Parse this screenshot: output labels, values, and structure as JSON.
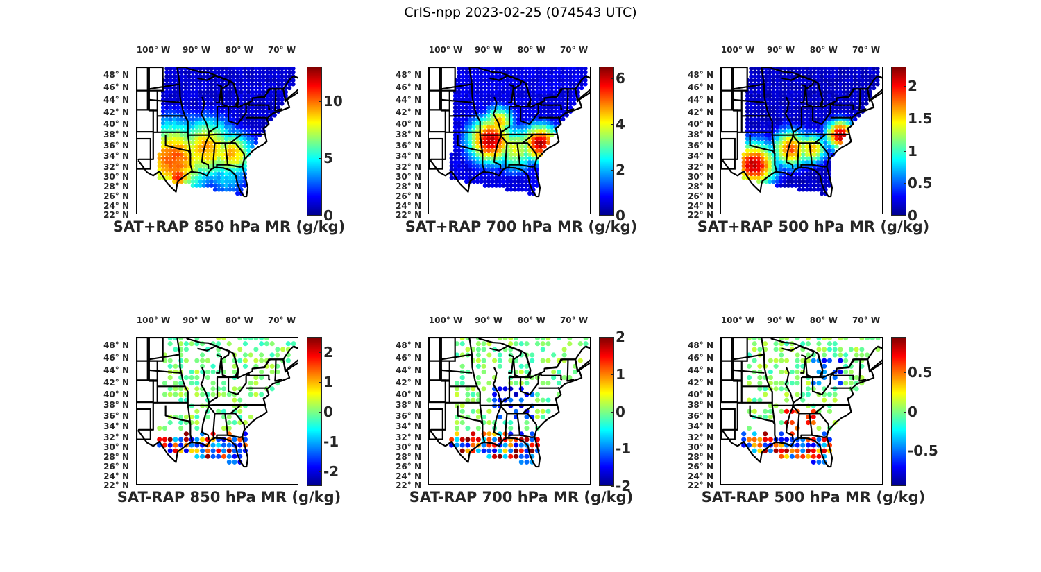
{
  "figure": {
    "title": "CrIS-npp 2023-02-25 (074543 UTC)"
  },
  "chart_data": [
    {
      "type": "heatmap",
      "title": "SAT+RAP 850 hPa MR (g/kg)",
      "xlabel": "",
      "ylabel": "",
      "x_ticks": [
        "100° W",
        "90° W",
        "80° W",
        "70° W"
      ],
      "y_ticks": [
        "48° N",
        "46° N",
        "44° N",
        "42° N",
        "40° N",
        "38° N",
        "36° N",
        "34° N",
        "32° N",
        "30° N",
        "28° N",
        "26° N",
        "24° N",
        "22° N"
      ],
      "lon_range": [
        -107,
        -68
      ],
      "lat_range": [
        22,
        49
      ],
      "colormap": "jet",
      "colorbar": {
        "range": [
          0,
          13
        ],
        "ticks": [
          0,
          5,
          10
        ],
        "tick_labels": [
          "0",
          "5",
          "10"
        ]
      },
      "summary": "Low values (~0-2) across the north; high values (~8-11) across southern plains, Texas, Tennessee valley and Gulf states."
    },
    {
      "type": "heatmap",
      "title": "SAT+RAP 700 hPa MR (g/kg)",
      "x_ticks": [
        "100° W",
        "90° W",
        "80° W",
        "70° W"
      ],
      "y_ticks": [
        "48° N",
        "46° N",
        "44° N",
        "42° N",
        "40° N",
        "38° N",
        "36° N",
        "34° N",
        "32° N",
        "30° N",
        "28° N",
        "26° N",
        "24° N",
        "22° N"
      ],
      "lon_range": [
        -107,
        -68
      ],
      "lat_range": [
        22,
        49
      ],
      "colormap": "jet",
      "colorbar": {
        "range": [
          0,
          6.5
        ],
        "ticks": [
          0,
          2,
          4,
          6
        ],
        "tick_labels": [
          "0",
          "2",
          "4",
          "6"
        ]
      },
      "summary": "Band of high values (~5-6.5) along 34-37 N from Oklahoma to the Carolinas; low elsewhere."
    },
    {
      "type": "heatmap",
      "title": "SAT+RAP 500 hPa MR (g/kg)",
      "x_ticks": [
        "100° W",
        "90° W",
        "80° W",
        "70° W"
      ],
      "y_ticks": [
        "48° N",
        "46° N",
        "44° N",
        "42° N",
        "40° N",
        "38° N",
        "36° N",
        "34° N",
        "32° N",
        "30° N",
        "28° N",
        "26° N",
        "24° N",
        "22° N"
      ],
      "lon_range": [
        -107,
        -68
      ],
      "lat_range": [
        22,
        49
      ],
      "colormap": "jet",
      "colorbar": {
        "range": [
          0,
          2.3
        ],
        "ticks": [
          0,
          0.5,
          1,
          1.5,
          2
        ],
        "tick_labels": [
          "0",
          "0.5",
          "1",
          "1.5",
          "2"
        ]
      },
      "summary": "High values (~2+) in a SW-NE band from south Texas to Virginia/North Carolina; low elsewhere."
    },
    {
      "type": "scatter",
      "title": "SAT-RAP 850 hPa MR (g/kg)",
      "x_ticks": [
        "100° W",
        "90° W",
        "80° W",
        "70° W"
      ],
      "y_ticks": [
        "48° N",
        "46° N",
        "44° N",
        "42° N",
        "40° N",
        "38° N",
        "36° N",
        "34° N",
        "32° N",
        "30° N",
        "28° N",
        "26° N",
        "24° N",
        "22° N"
      ],
      "lon_range": [
        -107,
        -68
      ],
      "lat_range": [
        22,
        49
      ],
      "colormap": "jet",
      "colorbar": {
        "range": [
          -2.5,
          2.5
        ],
        "ticks": [
          -2,
          -1,
          0,
          1,
          2
        ],
        "tick_labels": [
          "-2",
          "-1",
          "0",
          "1",
          "2"
        ]
      },
      "summary": "Mostly near 0 in north; mixed strong positive/negative along Gulf coast."
    },
    {
      "type": "scatter",
      "title": "SAT-RAP 700 hPa MR (g/kg)",
      "x_ticks": [
        "100° W",
        "90° W",
        "80° W",
        "70° W"
      ],
      "y_ticks": [
        "48° N",
        "46° N",
        "44° N",
        "42° N",
        "40° N",
        "38° N",
        "36° N",
        "34° N",
        "32° N",
        "30° N",
        "28° N",
        "26° N",
        "24° N",
        "22° N"
      ],
      "lon_range": [
        -107,
        -68
      ],
      "lat_range": [
        22,
        49
      ],
      "colormap": "jet",
      "colorbar": {
        "range": [
          -2,
          2
        ],
        "ticks": [
          -2,
          -1,
          0,
          1,
          2
        ],
        "tick_labels": [
          "-2",
          "-1",
          "0",
          "1",
          "2"
        ]
      },
      "summary": "Negative values (~-2) over Ohio/Tennessee valleys; positive over Gulf and Florida."
    },
    {
      "type": "scatter",
      "title": "SAT-RAP 500 hPa MR (g/kg)",
      "x_ticks": [
        "100° W",
        "90° W",
        "80° W",
        "70° W"
      ],
      "y_ticks": [
        "48° N",
        "46° N",
        "44° N",
        "42° N",
        "40° N",
        "38° N",
        "36° N",
        "34° N",
        "32° N",
        "30° N",
        "28° N",
        "26° N",
        "24° N",
        "22° N"
      ],
      "lon_range": [
        -107,
        -68
      ],
      "lat_range": [
        22,
        49
      ],
      "colormap": "jet",
      "colorbar": {
        "range": [
          -0.95,
          0.95
        ],
        "ticks": [
          -0.5,
          0,
          0.5
        ],
        "tick_labels": [
          "-0.5",
          "0",
          "0.5"
        ]
      },
      "summary": "Mostly near 0; negative over Great Lakes/Ohio and NC; positive over Mississippi/Alabama/Georgia."
    }
  ]
}
